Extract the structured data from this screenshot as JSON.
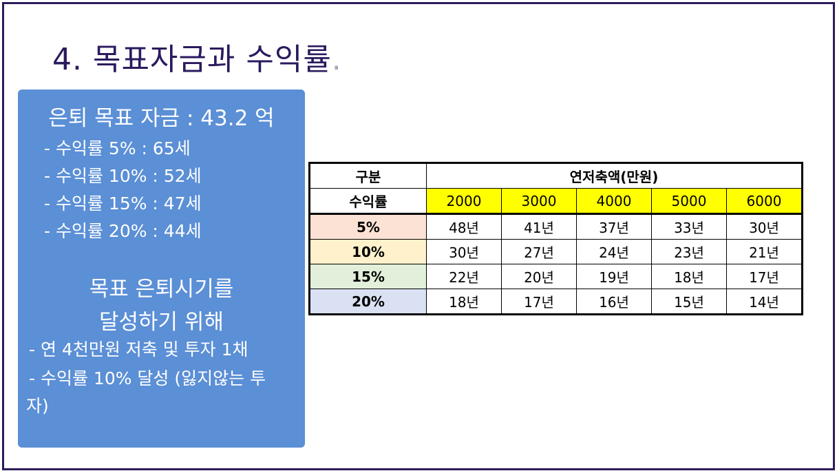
{
  "title": {
    "text": "4. 목표자금과 수익률",
    "dot": "."
  },
  "info": {
    "heading": "은퇴 목표 자금 : 43.2 억",
    "returns": [
      "- 수익률 5% : 65세",
      "- 수익률 10% : 52세",
      "- 수익률 15% : 47세",
      "- 수익률 20% : 44세"
    ],
    "goal_line1": "목표 은퇴시기를",
    "goal_line2": "달성하기 위해",
    "actions": [
      "- 연 4천만원 저축 및 투자 1채",
      "- 수익률 10% 달성 (잃지않는 투"
    ],
    "actions_tail": "자)"
  },
  "table": {
    "header_label": "구분",
    "header_group": "연저축액(만원)",
    "row_label": "수익률",
    "columns": [
      "2000",
      "3000",
      "4000",
      "5000",
      "6000"
    ],
    "header_col_bg": "#ffff00",
    "rows": [
      {
        "rate": "5%",
        "bg": "#fbe2d5",
        "values": [
          "48년",
          "41년",
          "37년",
          "33년",
          "30년"
        ]
      },
      {
        "rate": "10%",
        "bg": "#fff1cc",
        "values": [
          "30년",
          "27년",
          "24년",
          "23년",
          "21년"
        ]
      },
      {
        "rate": "15%",
        "bg": "#e2efda",
        "values": [
          "22년",
          "20년",
          "19년",
          "18년",
          "17년"
        ]
      },
      {
        "rate": "20%",
        "bg": "#d9e1f2",
        "values": [
          "18년",
          "17년",
          "16년",
          "15년",
          "14년"
        ]
      }
    ]
  }
}
